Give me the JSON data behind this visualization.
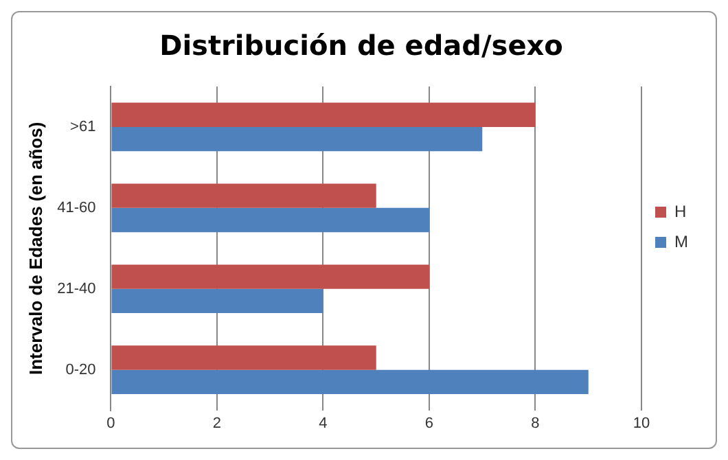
{
  "chart_data": {
    "type": "bar",
    "orientation": "horizontal",
    "title": "Distribución de edad/sexo",
    "ylabel": "Intervalo de Edades (en años)",
    "categories": [
      ">61",
      "41-60",
      "21-40",
      "0-20"
    ],
    "series": [
      {
        "name": "H",
        "color": "#c0504d",
        "values": [
          8,
          5,
          6,
          5
        ]
      },
      {
        "name": "M",
        "color": "#4f81bd",
        "values": [
          7,
          6,
          4,
          9
        ]
      }
    ],
    "xlim": [
      0,
      10
    ],
    "xticks": [
      0,
      2,
      4,
      6,
      8,
      10
    ],
    "grid": "x",
    "legend": "right"
  }
}
